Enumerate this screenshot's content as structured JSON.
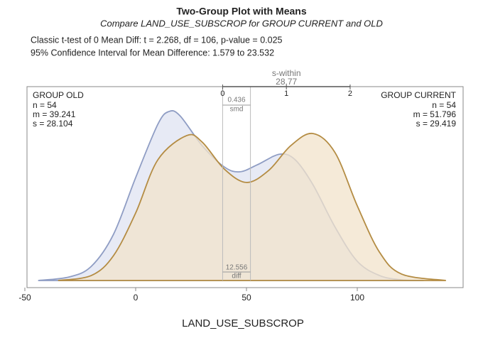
{
  "chart_data": {
    "type": "density",
    "title": "Two-Group Plot with Means",
    "subtitle": "Compare LAND_USE_SUBSCROP for GROUP CURRENT and OLD",
    "info_lines": [
      "Classic t-test of 0 Mean Diff:  t = 2.268,  df = 106,  p-value = 0.025",
      "95% Confidence Interval for Mean Difference:  1.579 to 23.532"
    ],
    "x_label": "LAND_USE_SUBSCROP",
    "xlim": [
      -50,
      150
    ],
    "xticks": [
      -50,
      0,
      50,
      100
    ],
    "ylim": [
      0,
      0.012
    ],
    "series": [
      {
        "name": "GROUP OLD",
        "color": "#8f9dc4",
        "fill": "#dfe3f1",
        "corner": "top-left",
        "stats": [
          "n = 54",
          "m = 39.241",
          "s = 28.104"
        ],
        "mean": 39.241,
        "x": [
          -44,
          -30,
          -20,
          -10,
          0,
          10,
          15,
          20,
          30,
          40,
          47,
          55,
          65,
          72,
          80,
          90,
          100,
          110,
          120,
          130
        ],
        "values": [
          0,
          0.00022,
          0.00088,
          0.00286,
          0.00637,
          0.00967,
          0.01046,
          0.0102,
          0.00835,
          0.00703,
          0.00673,
          0.00717,
          0.00782,
          0.00747,
          0.00593,
          0.0033,
          0.00119,
          0.00031,
          4e-05,
          0
        ]
      },
      {
        "name": "GROUP CURRENT",
        "color": "#b48c43",
        "fill": "#f1e3cb",
        "corner": "top-right",
        "stats": [
          "n = 54",
          "m = 51.796",
          "s = 29.419"
        ],
        "mean": 51.796,
        "x": [
          -35,
          -20,
          -10,
          0,
          10,
          23,
          30,
          40,
          50,
          60,
          70,
          80,
          90,
          100,
          110,
          120,
          140
        ],
        "values": [
          0,
          0.00031,
          0.00154,
          0.00418,
          0.00747,
          0.00897,
          0.00857,
          0.0069,
          0.00607,
          0.00681,
          0.00835,
          0.0091,
          0.00791,
          0.00462,
          0.00176,
          0.0004,
          0
        ]
      }
    ],
    "s_within_label": "s-within",
    "s_within": 28.77,
    "s_within_ticks": [
      0,
      1,
      2
    ],
    "smd": 0.436,
    "smd_label": "smd",
    "diff": 12.556,
    "diff_label": "diff"
  }
}
